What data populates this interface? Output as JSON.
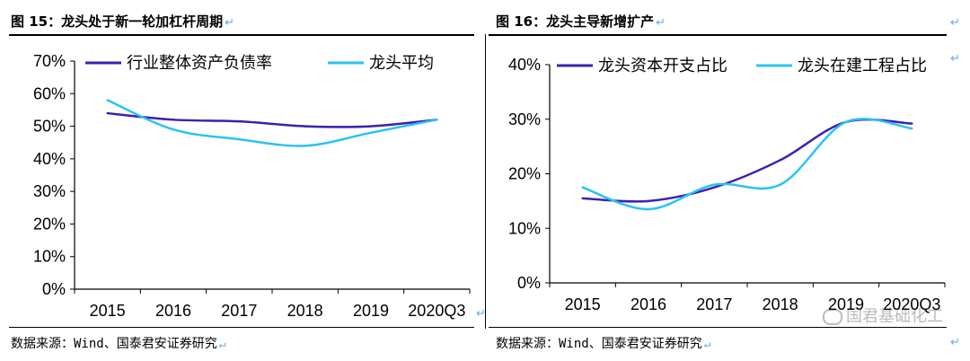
{
  "left": {
    "title": "图 15：龙头处于新一轮加杠杆周期",
    "source": "数据来源：Wind、国泰君安证券研究"
  },
  "right": {
    "title": "图 16：龙头主导新增扩产",
    "source": "数据来源：Wind、国泰君安证券研究"
  },
  "watermark": "国君基础化工",
  "chart_data": [
    {
      "type": "line",
      "categories": [
        "2015",
        "2016",
        "2017",
        "2018",
        "2019",
        "2020Q3"
      ],
      "ylim": [
        0,
        70
      ],
      "yticks": [
        "0%",
        "10%",
        "20%",
        "30%",
        "40%",
        "50%",
        "60%",
        "70%"
      ],
      "legend": "top",
      "grid": false,
      "series": [
        {
          "name": "行业整体资产负债率",
          "color": "#3d1fb3",
          "values": [
            54,
            52,
            51.5,
            50,
            50,
            52
          ]
        },
        {
          "name": "龙头平均",
          "color": "#29c3f2",
          "values": [
            58,
            49,
            46,
            44,
            48,
            52
          ]
        }
      ]
    },
    {
      "type": "line",
      "categories": [
        "2015",
        "2016",
        "2017",
        "2018",
        "2019",
        "2020Q3"
      ],
      "ylim": [
        0,
        40
      ],
      "yticks": [
        "0%",
        "10%",
        "20%",
        "30%",
        "40%"
      ],
      "legend": "top",
      "grid": false,
      "series": [
        {
          "name": "龙头资本开支占比",
          "color": "#3d1fb3",
          "values": [
            15.5,
            15,
            17.5,
            22.5,
            29.5,
            29.2
          ]
        },
        {
          "name": "龙头在建工程占比",
          "color": "#29c3f2",
          "values": [
            17.5,
            13.5,
            18,
            18,
            29.5,
            28.3
          ]
        }
      ]
    }
  ]
}
